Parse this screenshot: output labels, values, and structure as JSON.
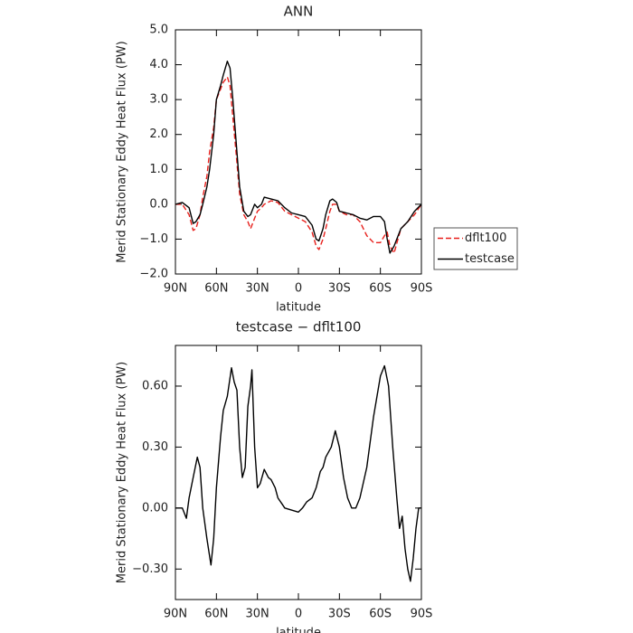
{
  "chart_data": [
    {
      "type": "line",
      "title": "ANN",
      "xlabel": "latitude",
      "ylabel": "Merid Stationary Eddy Heat Flux (PW)",
      "x": [
        90,
        85,
        80,
        77,
        75,
        72,
        70,
        67,
        65,
        62,
        60,
        57,
        55,
        52,
        50,
        48,
        45,
        43,
        40,
        37,
        35,
        32,
        30,
        27,
        25,
        20,
        15,
        10,
        5,
        0,
        -5,
        -10,
        -13,
        -15,
        -18,
        -20,
        -23,
        -25,
        -28,
        -30,
        -35,
        -40,
        -45,
        -50,
        -55,
        -60,
        -63,
        -65,
        -67,
        -70,
        -75,
        -80,
        -85,
        -90
      ],
      "series": [
        {
          "name": "dflt100",
          "color": "#e8201c",
          "dash": true,
          "values": [
            0,
            0,
            -0.3,
            -0.75,
            -0.7,
            -0.3,
            0.2,
            0.8,
            1.5,
            2.2,
            3.0,
            3.3,
            3.5,
            3.65,
            3.4,
            2.5,
            1.2,
            0.3,
            -0.3,
            -0.5,
            -0.7,
            -0.4,
            -0.2,
            -0.1,
            0.0,
            0.1,
            0.05,
            -0.2,
            -0.3,
            -0.4,
            -0.5,
            -0.8,
            -1.2,
            -1.3,
            -1.0,
            -0.7,
            -0.2,
            0.0,
            0.0,
            -0.2,
            -0.3,
            -0.3,
            -0.5,
            -0.9,
            -1.1,
            -1.1,
            -0.9,
            -0.8,
            -1.2,
            -1.4,
            -0.7,
            -0.5,
            -0.3,
            0
          ]
        },
        {
          "name": "testcase",
          "color": "#000000",
          "dash": false,
          "values": [
            0,
            0.05,
            -0.1,
            -0.55,
            -0.5,
            -0.3,
            0,
            0.5,
            1.0,
            2.0,
            3.0,
            3.4,
            3.7,
            4.1,
            3.9,
            3.0,
            1.5,
            0.5,
            -0.2,
            -0.35,
            -0.3,
            0.0,
            -0.1,
            0.0,
            0.2,
            0.15,
            0.1,
            -0.1,
            -0.25,
            -0.3,
            -0.35,
            -0.6,
            -1.0,
            -1.05,
            -0.7,
            -0.3,
            0.1,
            0.15,
            0.05,
            -0.2,
            -0.25,
            -0.3,
            -0.4,
            -0.45,
            -0.35,
            -0.35,
            -0.5,
            -1.0,
            -1.4,
            -1.2,
            -0.7,
            -0.5,
            -0.2,
            0
          ]
        }
      ],
      "xlim": [
        90,
        -90
      ],
      "xticks": [
        {
          "value": 90,
          "label": "90N"
        },
        {
          "value": 60,
          "label": "60N"
        },
        {
          "value": 30,
          "label": "30N"
        },
        0,
        {
          "value": -30,
          "label": "30S"
        },
        {
          "value": -60,
          "label": "60S"
        },
        {
          "value": -90,
          "label": "90S"
        }
      ],
      "ylim": [
        -2,
        5
      ],
      "yticks": [
        {
          "value": -2,
          "label": "−2.0"
        },
        {
          "value": -1,
          "label": "−1.0"
        },
        {
          "value": 0,
          "label": "0.0"
        },
        {
          "value": 1,
          "label": "1.0"
        },
        {
          "value": 2,
          "label": "2.0"
        },
        {
          "value": 3,
          "label": "3.0"
        },
        {
          "value": 4,
          "label": "4.0"
        },
        {
          "value": 5,
          "label": "5.0"
        }
      ],
      "legend": "right"
    },
    {
      "type": "line",
      "title": "testcase − dflt100",
      "xlabel": "latitude",
      "ylabel": "Merid Stationary Eddy Heat Flux (PW)",
      "x": [
        90,
        85,
        82,
        80,
        77,
        74,
        72,
        70,
        67,
        64,
        62,
        60,
        57,
        55,
        52,
        49,
        47,
        45,
        43,
        41,
        39,
        37,
        35,
        34,
        32,
        30,
        28,
        25,
        22,
        20,
        17,
        15,
        12,
        10,
        5,
        0,
        -3,
        -6,
        -10,
        -13,
        -16,
        -18,
        -20,
        -24,
        -27,
        -30,
        -33,
        -36,
        -39,
        -42,
        -45,
        -50,
        -55,
        -60,
        -63,
        -66,
        -69,
        -72,
        -74,
        -76,
        -78,
        -80,
        -82,
        -84,
        -86,
        -88,
        -90
      ],
      "values": [
        0.0,
        0.0,
        -0.05,
        0.05,
        0.15,
        0.25,
        0.2,
        0.0,
        -0.15,
        -0.28,
        -0.15,
        0.1,
        0.35,
        0.48,
        0.55,
        0.69,
        0.62,
        0.58,
        0.3,
        0.15,
        0.2,
        0.5,
        0.6,
        0.68,
        0.3,
        0.1,
        0.12,
        0.19,
        0.15,
        0.14,
        0.1,
        0.05,
        0.02,
        0.0,
        -0.01,
        -0.02,
        0.0,
        0.03,
        0.05,
        0.1,
        0.18,
        0.2,
        0.25,
        0.3,
        0.38,
        0.3,
        0.15,
        0.05,
        0.0,
        0.0,
        0.05,
        0.2,
        0.45,
        0.65,
        0.7,
        0.6,
        0.3,
        0.05,
        -0.1,
        -0.04,
        -0.2,
        -0.3,
        -0.36,
        -0.25,
        -0.1,
        0.0,
        0.0
      ],
      "color": "#000000",
      "xlim": [
        90,
        -90
      ],
      "xticks": [
        {
          "value": 90,
          "label": "90N"
        },
        {
          "value": 60,
          "label": "60N"
        },
        {
          "value": 30,
          "label": "30N"
        },
        0,
        {
          "value": -30,
          "label": "30S"
        },
        {
          "value": -60,
          "label": "60S"
        },
        {
          "value": -90,
          "label": "90S"
        }
      ],
      "ylim": [
        -0.45,
        0.8
      ],
      "yticks": [
        {
          "value": -0.3,
          "label": "−0.30"
        },
        {
          "value": 0,
          "label": "0.00"
        },
        {
          "value": 0.3,
          "label": "0.30"
        },
        {
          "value": 0.6,
          "label": "0.60"
        }
      ]
    }
  ]
}
